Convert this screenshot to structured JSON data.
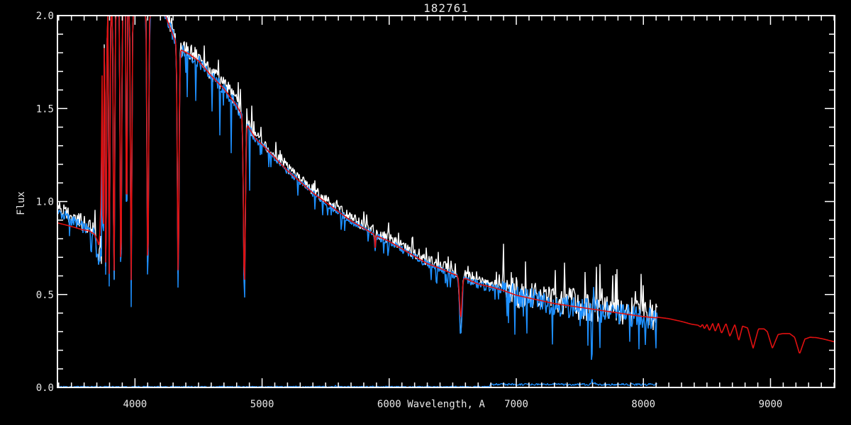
{
  "window_title": "182761",
  "chart_data": {
    "type": "line",
    "title": "182761",
    "xlabel": "Wavelength, A",
    "ylabel": "Flux",
    "x_range": [
      3390,
      9505
    ],
    "y_range": [
      0.0,
      2.0
    ],
    "x_major_ticks": {
      "values": [
        4000,
        5000,
        6000,
        7000,
        8000,
        9000
      ],
      "labels": [
        "4000",
        "5000",
        "6000",
        "7000",
        "8000",
        "9000"
      ]
    },
    "x_minor_step": 100,
    "y_major_ticks": {
      "values": [
        0.0,
        0.5,
        1.0,
        1.5,
        2.0
      ],
      "labels": [
        "0.0",
        "0.5",
        "1.0",
        "1.5",
        "2.0"
      ]
    },
    "y_minor_step": 0.1,
    "grid": false,
    "legend": "none",
    "colors": {
      "background": "#000000",
      "frame": "#ffffff",
      "observed_raw": "#ffffff",
      "observed": "#1e90ff",
      "model": "#e01010",
      "sky": "#1e90ff",
      "labels": "#e9e9e9"
    },
    "series_meta": [
      {
        "name": "observed-raw-spectrum",
        "color": "#ffffff",
        "range_A": [
          3398,
          8110
        ]
      },
      {
        "name": "observed-spectrum",
        "color": "#1e90ff",
        "range_A": [
          3398,
          8110
        ]
      },
      {
        "name": "model-spectrum",
        "color": "#e01010",
        "range_A": [
          3390,
          9505
        ]
      },
      {
        "name": "sky-error-spectrum",
        "color": "#1e90ff",
        "range_A": [
          3398,
          8110
        ]
      }
    ],
    "continuum_points": [
      [
        3390,
        0.95
      ],
      [
        3450,
        0.93
      ],
      [
        3520,
        0.9
      ],
      [
        3600,
        0.865
      ],
      [
        3660,
        0.845
      ],
      [
        3700,
        0.84
      ],
      [
        3715,
        0.87
      ],
      [
        3725,
        1.0
      ],
      [
        3735,
        1.4
      ],
      [
        3746,
        2.1
      ],
      [
        4180,
        2.1
      ],
      [
        4230,
        2.02
      ],
      [
        4270,
        1.95
      ],
      [
        4310,
        1.88
      ],
      [
        4360,
        1.82
      ],
      [
        4420,
        1.8
      ],
      [
        4500,
        1.76
      ],
      [
        4600,
        1.68
      ],
      [
        4700,
        1.61
      ],
      [
        4800,
        1.52
      ],
      [
        4840,
        1.47
      ],
      [
        4880,
        1.42
      ],
      [
        4950,
        1.34
      ],
      [
        5000,
        1.31
      ],
      [
        5100,
        1.24
      ],
      [
        5200,
        1.17
      ],
      [
        5300,
        1.11
      ],
      [
        5400,
        1.05
      ],
      [
        5500,
        1.0
      ],
      [
        5600,
        0.95
      ],
      [
        5700,
        0.9
      ],
      [
        5800,
        0.86
      ],
      [
        5900,
        0.82
      ],
      [
        6000,
        0.79
      ],
      [
        6100,
        0.75
      ],
      [
        6200,
        0.71
      ],
      [
        6300,
        0.67
      ],
      [
        6400,
        0.645
      ],
      [
        6500,
        0.615
      ],
      [
        6600,
        0.59
      ],
      [
        6700,
        0.56
      ],
      [
        6800,
        0.545
      ],
      [
        6900,
        0.525
      ],
      [
        7000,
        0.5
      ],
      [
        7100,
        0.485
      ],
      [
        7200,
        0.47
      ],
      [
        7300,
        0.455
      ],
      [
        7400,
        0.445
      ],
      [
        7500,
        0.435
      ],
      [
        7600,
        0.425
      ],
      [
        7700,
        0.415
      ],
      [
        7800,
        0.405
      ],
      [
        7900,
        0.395
      ],
      [
        8000,
        0.385
      ],
      [
        8110,
        0.378
      ]
    ],
    "absorption_lines": [
      {
        "center": 3697,
        "sigma": 4,
        "blue_floor": 0.74,
        "red_floor": 0.78
      },
      {
        "center": 3704,
        "sigma": 4,
        "blue_floor": 0.7,
        "red_floor": 0.74
      },
      {
        "center": 3712,
        "sigma": 5,
        "blue_floor": 0.66,
        "red_floor": 0.7
      },
      {
        "center": 3722,
        "sigma": 5,
        "blue_floor": 0.63,
        "red_floor": 0.68
      },
      {
        "center": 3734,
        "sigma": 6,
        "blue_floor": 0.6,
        "red_floor": 0.64
      },
      {
        "center": 3750,
        "sigma": 6,
        "blue_floor": 0.575,
        "red_floor": 0.62
      },
      {
        "center": 3771,
        "sigma": 7,
        "blue_floor": 0.56,
        "red_floor": 0.6
      },
      {
        "center": 3798,
        "sigma": 7,
        "blue_floor": 0.555,
        "red_floor": 0.6
      },
      {
        "center": 3835,
        "sigma": 8,
        "blue_floor": 0.55,
        "red_floor": 0.59
      },
      {
        "center": 3889,
        "sigma": 8,
        "blue_floor": 0.53,
        "red_floor": 0.57
      },
      {
        "center": 3934,
        "sigma": 5,
        "blue_floor": 0.62,
        "red_floor": 0.66
      },
      {
        "center": 3970,
        "sigma": 8,
        "blue_floor": 0.54,
        "red_floor": 0.58
      },
      {
        "center": 4101,
        "sigma": 9,
        "blue_floor": 0.57,
        "red_floor": 0.61
      },
      {
        "center": 4340,
        "sigma": 9,
        "blue_floor": 0.54,
        "red_floor": 0.6
      },
      {
        "center": 4861,
        "sigma": 10,
        "blue_floor": 0.48,
        "red_floor": 0.55
      },
      {
        "center": 5890,
        "sigma": 5,
        "depth": 0.07
      },
      {
        "center": 6563,
        "sigma": 13,
        "blue_floor": 0.28,
        "red_floor": 0.38
      }
    ],
    "blue_only_features": {
      "telluric_dip": {
        "center": 7594,
        "sigma": 4,
        "floor": 0.02
      },
      "emission_spike": {
        "center": 7607,
        "sigma": 3,
        "peak": 0.56
      }
    },
    "model_blue_end_points": [
      [
        3390,
        0.885
      ],
      [
        3450,
        0.875
      ],
      [
        3520,
        0.862
      ],
      [
        3580,
        0.85
      ],
      [
        3640,
        0.842
      ],
      [
        3680,
        0.825
      ],
      [
        3705,
        0.79
      ],
      [
        3715,
        0.762
      ],
      [
        3722,
        0.8
      ],
      [
        3730,
        0.95
      ],
      [
        3738,
        1.35
      ],
      [
        3746,
        2.1
      ]
    ],
    "model_tail_points": [
      [
        8110,
        0.378
      ],
      [
        8200,
        0.37
      ],
      [
        8300,
        0.355
      ],
      [
        8380,
        0.34
      ],
      [
        8430,
        0.335
      ],
      [
        8450,
        0.325
      ],
      [
        8465,
        0.34
      ],
      [
        8480,
        0.315
      ],
      [
        8500,
        0.34
      ],
      [
        8520,
        0.305
      ],
      [
        8545,
        0.345
      ],
      [
        8565,
        0.3
      ],
      [
        8590,
        0.345
      ],
      [
        8615,
        0.29
      ],
      [
        8650,
        0.345
      ],
      [
        8680,
        0.275
      ],
      [
        8720,
        0.34
      ],
      [
        8750,
        0.25
      ],
      [
        8780,
        0.33
      ],
      [
        8820,
        0.32
      ],
      [
        8863,
        0.21
      ],
      [
        8905,
        0.315
      ],
      [
        8950,
        0.315
      ],
      [
        8975,
        0.3
      ],
      [
        9015,
        0.21
      ],
      [
        9060,
        0.285
      ],
      [
        9100,
        0.29
      ],
      [
        9150,
        0.29
      ],
      [
        9190,
        0.27
      ],
      [
        9229,
        0.18
      ],
      [
        9270,
        0.26
      ],
      [
        9310,
        0.27
      ],
      [
        9360,
        0.268
      ],
      [
        9420,
        0.26
      ],
      [
        9505,
        0.245
      ]
    ],
    "sky_trace": {
      "level_blue_side": 0.004,
      "step_wavelength": 6790,
      "level_red_side": 0.016,
      "noise_amp_blue_side": 0.003,
      "noise_amp_red_side": 0.006,
      "bumps": [
        [
          5577,
          0.012
        ],
        [
          6300,
          0.01
        ],
        [
          7597,
          0.045
        ],
        [
          7618,
          0.028
        ]
      ],
      "end_wavelength": 8110
    },
    "noise_regions": [
      [
        3390,
        3746,
        0.045,
        0.032
      ],
      [
        3746,
        4250,
        0.04,
        0.03
      ],
      [
        4250,
        4950,
        0.048,
        0.036
      ],
      [
        4950,
        6550,
        0.03,
        0.02
      ],
      [
        6550,
        6850,
        0.036,
        0.026
      ],
      [
        6850,
        8115,
        0.085,
        0.062
      ]
    ],
    "spike_extra_depth_region": [
      4250,
      4950
    ],
    "spike_extra_depth": 0.26,
    "data_end_wavelength": 8110
  }
}
